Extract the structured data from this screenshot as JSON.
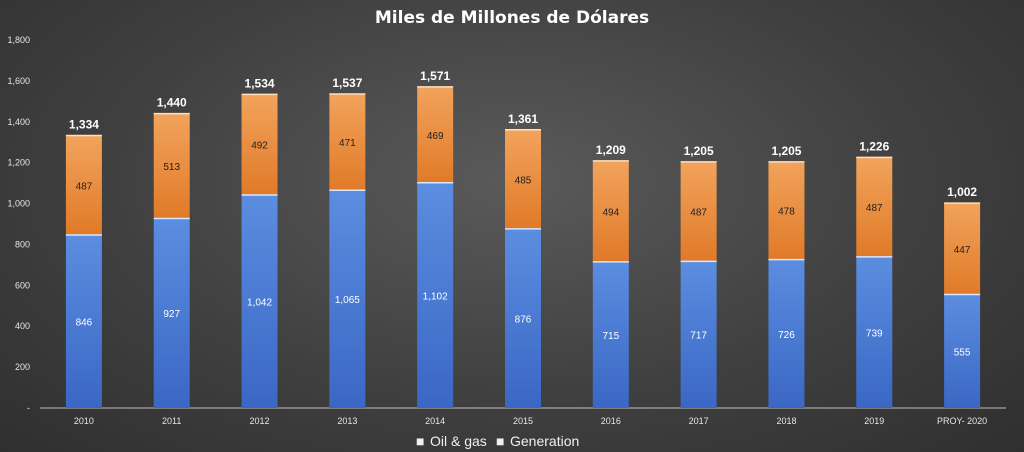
{
  "chart_data": {
    "type": "bar",
    "stacked": true,
    "title": "Miles de Millones de Dólares",
    "categories": [
      "2010",
      "2011",
      "2012",
      "2013",
      "2014",
      "2015",
      "2016",
      "2017",
      "2018",
      "2019",
      "PROY- 2020"
    ],
    "series": [
      {
        "name": "Oil & gas",
        "values": [
          846,
          927,
          1042,
          1065,
          1102,
          876,
          715,
          717,
          726,
          739,
          555
        ],
        "labels": [
          "846",
          "927",
          "1,042",
          "1,065",
          "1,102",
          "876",
          "715",
          "717",
          "726",
          "739",
          "555"
        ]
      },
      {
        "name": "Generation",
        "values": [
          487,
          513,
          492,
          471,
          469,
          485,
          494,
          487,
          478,
          487,
          447
        ],
        "labels": [
          "487",
          "513",
          "492",
          "471",
          "469",
          "485",
          "494",
          "487",
          "478",
          "487",
          "447"
        ]
      }
    ],
    "totals": [
      "1,334",
      "1,440",
      "1,534",
      "1,537",
      "1,571",
      "1,361",
      "1,209",
      "1,205",
      "1,205",
      "1,226",
      "1,002"
    ],
    "ylim": [
      0,
      1800
    ],
    "yticks": [
      0,
      200,
      400,
      600,
      800,
      1000,
      1200,
      1400,
      1600,
      1800
    ],
    "ytick_labels": [
      "-",
      "200",
      "400",
      "600",
      "800",
      "1,000",
      "1,200",
      "1,400",
      "1,600",
      "1,800"
    ],
    "xlabel": "",
    "ylabel": "",
    "legend_position": "bottom-center",
    "colors": {
      "oil_top": "#5b8de0",
      "oil_bottom": "#3a67c4",
      "gen_top": "#f2a35c",
      "gen_bottom": "#e07a28",
      "legend_oil": "#4f7fdc",
      "legend_gen": "#ee8a3a",
      "axis": "#bdbdbd"
    },
    "legend": {
      "oil_marker": "■",
      "gen_marker": "■"
    }
  }
}
